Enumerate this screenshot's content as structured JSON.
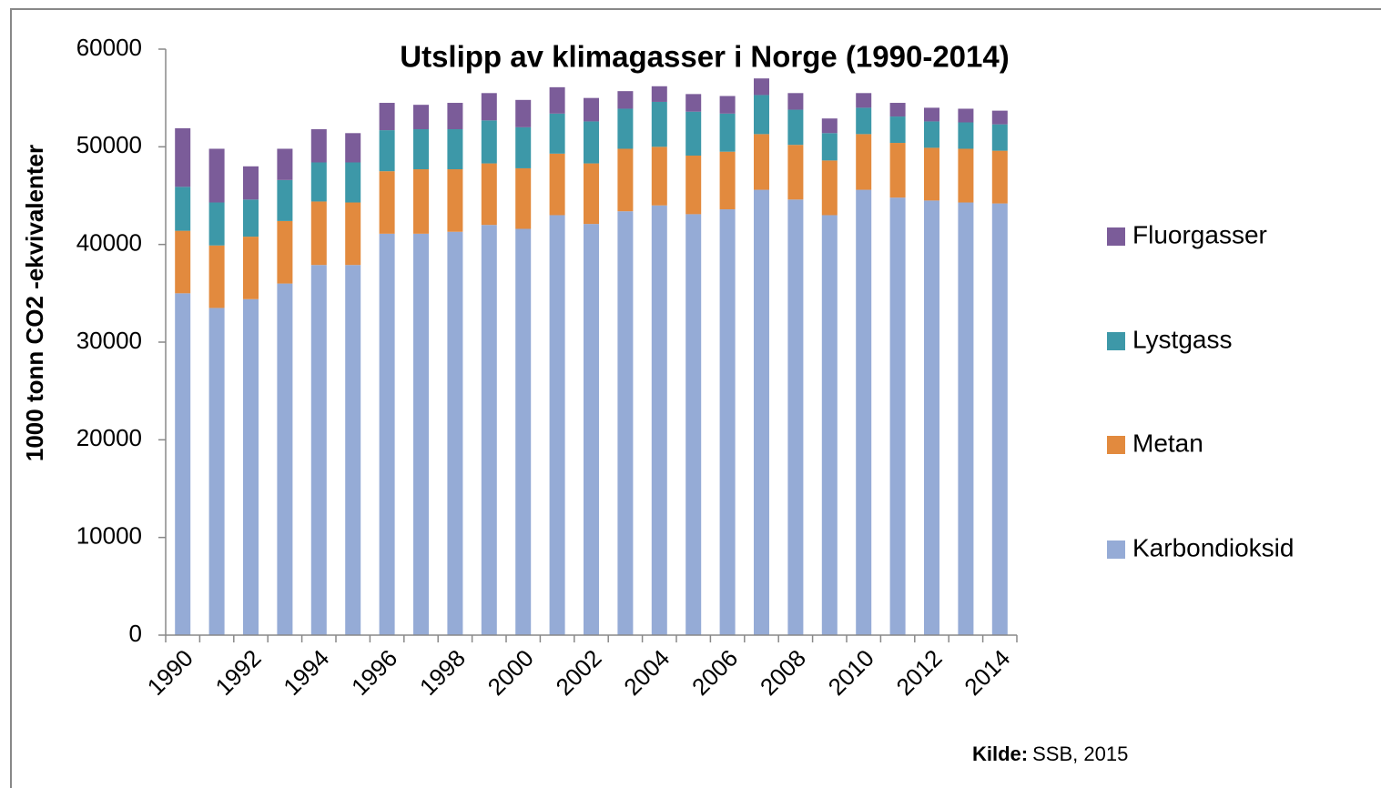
{
  "chart_data": {
    "type": "stacked_bar",
    "title": "Utslipp av klimagasser i Norge  (1990-2014)",
    "ylabel": "1000 tonn CO2 -ekvivalenter",
    "source_label": "Kilde:",
    "source": "SSB, 2015",
    "categories": [
      1990,
      null,
      1992,
      null,
      1994,
      null,
      1996,
      null,
      1998,
      null,
      2000,
      null,
      2002,
      null,
      2004,
      null,
      2006,
      null,
      2008,
      null,
      2010,
      null,
      2012,
      null,
      2014
    ],
    "ylim": [
      0,
      60000
    ],
    "yticks": [
      0,
      10000,
      20000,
      30000,
      40000,
      50000,
      60000
    ],
    "legend": "right",
    "series": [
      {
        "name": "Karbondioksid",
        "color": "#95abd6",
        "values": [
          35000,
          33500,
          34400,
          36000,
          37900,
          37900,
          41100,
          41100,
          41300,
          42000,
          41600,
          43000,
          42100,
          43400,
          44000,
          43100,
          43600,
          45600,
          44600,
          43000,
          45600,
          44800,
          44500,
          44300,
          44200
        ]
      },
      {
        "name": "Metan",
        "color": "#e28a3e",
        "values": [
          6400,
          6400,
          6400,
          6400,
          6500,
          6400,
          6400,
          6600,
          6400,
          6300,
          6200,
          6300,
          6200,
          6400,
          6000,
          6000,
          5900,
          5700,
          5600,
          5600,
          5700,
          5600,
          5400,
          5500,
          5400
        ]
      },
      {
        "name": "Lystgass",
        "color": "#3d98a8",
        "values": [
          4500,
          4400,
          3800,
          4200,
          4000,
          4100,
          4200,
          4100,
          4100,
          4400,
          4200,
          4100,
          4300,
          4100,
          4600,
          4500,
          3900,
          4000,
          3600,
          2800,
          2700,
          2700,
          2700,
          2700,
          2700
        ]
      },
      {
        "name": "Fluorgasser",
        "color": "#7b5c99",
        "values": [
          6000,
          5500,
          3400,
          3200,
          3400,
          3000,
          2800,
          2500,
          2700,
          2800,
          2800,
          2700,
          2400,
          1800,
          1600,
          1800,
          1800,
          1700,
          1700,
          1500,
          1500,
          1400,
          1400,
          1400,
          1400
        ]
      }
    ]
  }
}
